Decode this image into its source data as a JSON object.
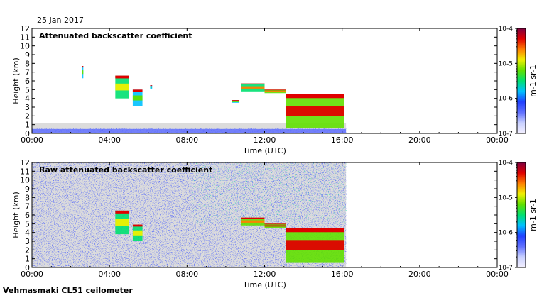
{
  "header": {
    "date": "25 Jan 2017"
  },
  "footer": {
    "instrument": "Vehmasmaki CL51 ceilometer"
  },
  "colors": {
    "background_gray": "#dcdcdc",
    "noise_blue": "#2030e0",
    "colormap": [
      "#f4f0ff",
      "#c8d0ff",
      "#6070ff",
      "#2040ff",
      "#00c0ff",
      "#00e070",
      "#60e000",
      "#f0f000",
      "#ff8000",
      "#e00000",
      "#800040"
    ]
  },
  "chart_data": [
    {
      "type": "heatmap",
      "title": "Attenuated backscatter coefficient",
      "xlabel": "Time (UTC)",
      "ylabel": "Height (km)",
      "xlim": [
        0,
        24
      ],
      "ylim": [
        0,
        12
      ],
      "xticks": [
        "00:00",
        "04:00",
        "08:00",
        "12:00",
        "16:00",
        "20:00",
        "00:00"
      ],
      "yticks": [
        "0",
        "1",
        "2",
        "3",
        "4",
        "5",
        "6",
        "7",
        "8",
        "9",
        "10",
        "11",
        "12"
      ],
      "data_end_hour": 16.2,
      "colorbar": {
        "label": "m-1 sr-1",
        "ticks": [
          {
            "value": -4,
            "label": "10-4"
          },
          {
            "value": -5,
            "label": "10-5"
          },
          {
            "value": -6,
            "label": "10-6"
          },
          {
            "value": -7,
            "label": "10-7"
          }
        ]
      },
      "features": [
        {
          "name": "surface-layer",
          "t0": 0,
          "t1": 16.2,
          "h0": 0,
          "h1": 0.5,
          "level": 0.2
        },
        {
          "name": "cloud-0230",
          "t0": 2.6,
          "t1": 2.65,
          "h0": 6.3,
          "h1": 7.7,
          "level": 0.55
        },
        {
          "name": "cloud-0430",
          "t0": 4.3,
          "t1": 5.0,
          "h0": 4.0,
          "h1": 6.6,
          "level": 0.65
        },
        {
          "name": "cloud-0520",
          "t0": 5.2,
          "t1": 5.7,
          "h0": 3.1,
          "h1": 5.0,
          "level": 0.6
        },
        {
          "name": "cloud-0600",
          "t0": 6.1,
          "t1": 6.2,
          "h0": 5.1,
          "h1": 5.5,
          "level": 0.5
        },
        {
          "name": "cloud-1030",
          "t0": 10.3,
          "t1": 10.7,
          "h0": 3.5,
          "h1": 3.8,
          "level": 0.6
        },
        {
          "name": "cloud-1100",
          "t0": 10.8,
          "t1": 12.0,
          "h0": 4.8,
          "h1": 5.7,
          "level": 0.75
        },
        {
          "name": "cloud-1200",
          "t0": 12.0,
          "t1": 13.1,
          "h0": 4.6,
          "h1": 5.0,
          "level": 0.8
        },
        {
          "name": "cloud-1300",
          "t0": 13.1,
          "t1": 16.1,
          "h0": 0.6,
          "h1": 4.5,
          "level": 0.85
        }
      ]
    },
    {
      "type": "heatmap",
      "title": "Raw attenuated backscatter coefficient",
      "xlabel": "Time (UTC)",
      "ylabel": "Height (km)",
      "xlim": [
        0,
        24
      ],
      "ylim": [
        0,
        12
      ],
      "xticks": [
        "00:00",
        "04:00",
        "08:00",
        "12:00",
        "16:00",
        "20:00",
        "00:00"
      ],
      "yticks": [
        "0",
        "1",
        "2",
        "3",
        "4",
        "5",
        "6",
        "7",
        "8",
        "9",
        "10",
        "11",
        "12"
      ],
      "data_end_hour": 16.2,
      "colorbar": {
        "label": "m-1 sr-1",
        "ticks": [
          {
            "value": -4,
            "label": "10-4"
          },
          {
            "value": -5,
            "label": "10-5"
          },
          {
            "value": -6,
            "label": "10-6"
          },
          {
            "value": -7,
            "label": "10-7"
          }
        ]
      },
      "features": [
        {
          "name": "noise-field",
          "t0": 0,
          "t1": 16.2,
          "h0": 0,
          "h1": 12,
          "level": 0.3
        },
        {
          "name": "cloud-0430",
          "t0": 4.3,
          "t1": 5.0,
          "h0": 3.8,
          "h1": 6.5,
          "level": 0.7
        },
        {
          "name": "cloud-0520",
          "t0": 5.2,
          "t1": 5.7,
          "h0": 3.0,
          "h1": 4.9,
          "level": 0.65
        },
        {
          "name": "cloud-1100",
          "t0": 10.8,
          "t1": 12.0,
          "h0": 4.8,
          "h1": 5.7,
          "level": 0.8
        },
        {
          "name": "cloud-1200",
          "t0": 12.0,
          "t1": 13.1,
          "h0": 4.5,
          "h1": 5.0,
          "level": 0.85
        },
        {
          "name": "cloud-1300",
          "t0": 13.1,
          "t1": 16.1,
          "h0": 0.6,
          "h1": 4.5,
          "level": 0.9
        }
      ]
    }
  ]
}
